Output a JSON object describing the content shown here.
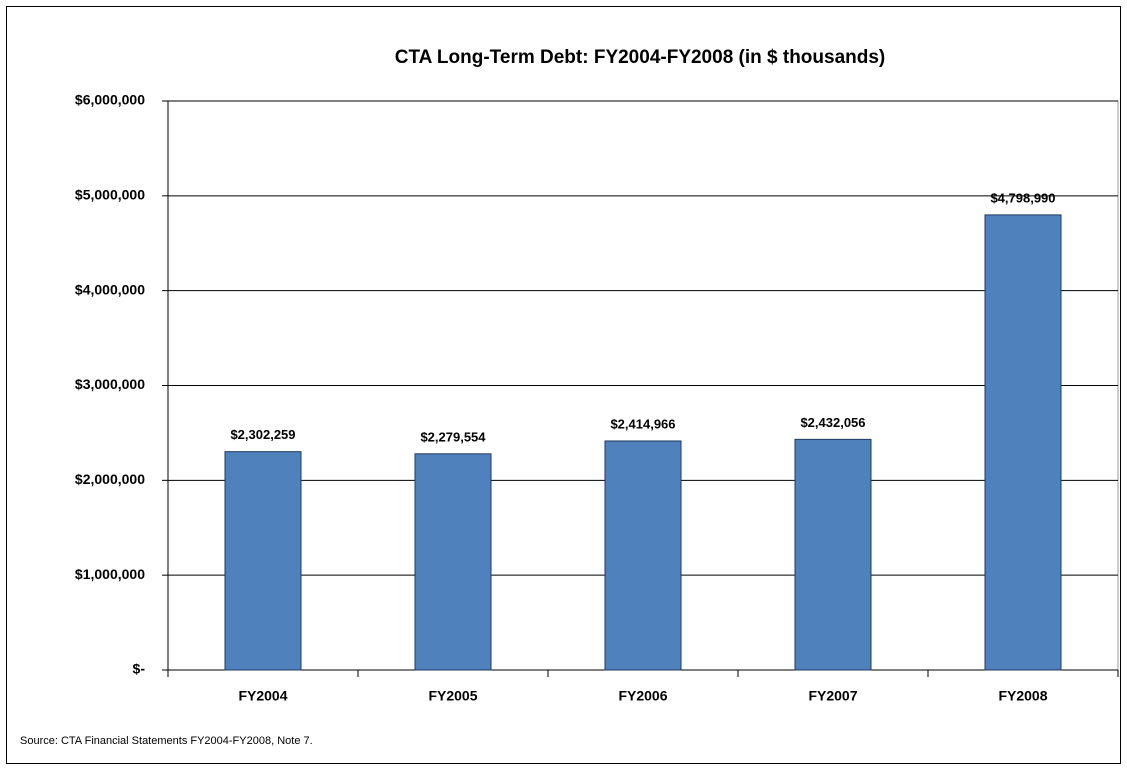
{
  "chart_data": {
    "type": "bar",
    "title": "CTA Long-Term Debt:  FY2004-FY2008 (in $ thousands)",
    "source": "Source:  CTA Financial Statements FY2004-FY2008, Note 7.",
    "categories": [
      "FY2004",
      "FY2005",
      "FY2006",
      "FY2007",
      "FY2008"
    ],
    "values": [
      2302259,
      2279554,
      2414966,
      2432056,
      4798990
    ],
    "value_labels": [
      "$2,302,259",
      "$2,279,554",
      "$2,414,966",
      "$2,432,056",
      "$4,798,990"
    ],
    "color": "#4f81bd",
    "ylim": [
      0,
      6000000
    ],
    "yticks": [
      {
        "value": 0,
        "label": "$-"
      },
      {
        "value": 1000000,
        "label": "$1,000,000"
      },
      {
        "value": 2000000,
        "label": "$2,000,000"
      },
      {
        "value": 3000000,
        "label": "$3,000,000"
      },
      {
        "value": 4000000,
        "label": "$4,000,000"
      },
      {
        "value": 5000000,
        "label": "$5,000,000"
      },
      {
        "value": 6000000,
        "label": "$6,000,000"
      }
    ],
    "grid": true
  }
}
